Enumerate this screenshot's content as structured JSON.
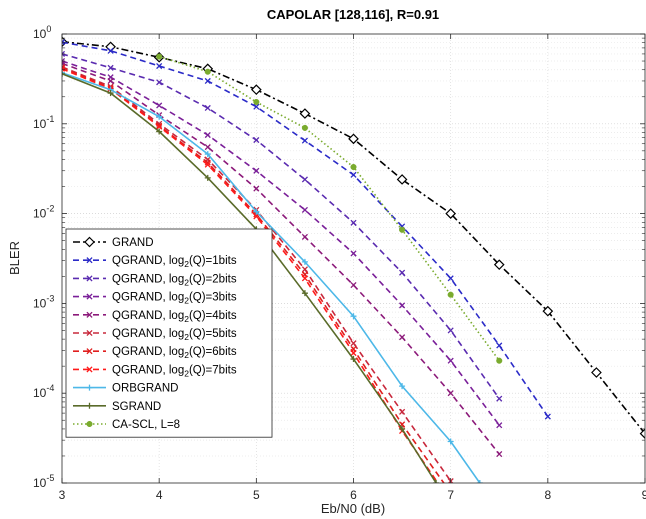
{
  "chart_data": {
    "type": "line",
    "title": "CAPOLAR [128,116], R=0.91",
    "xlabel": "Eb/N0 (dB)",
    "ylabel": "BLER",
    "xlim": [
      3,
      9
    ],
    "ylim": [
      1e-05,
      1
    ],
    "yscale": "log",
    "grid": true,
    "legend_position": "lower-left",
    "x_ticks": [
      "3",
      "4",
      "5",
      "6",
      "7",
      "8",
      "9"
    ],
    "y_ticks": [
      {
        "base": "10",
        "exp": "0",
        "value": 1
      },
      {
        "base": "10",
        "exp": "-1",
        "value": 0.1
      },
      {
        "base": "10",
        "exp": "-2",
        "value": 0.01
      },
      {
        "base": "10",
        "exp": "-3",
        "value": 0.001
      },
      {
        "base": "10",
        "exp": "-4",
        "value": 0.0001
      },
      {
        "base": "10",
        "exp": "-5",
        "value": 1e-05
      }
    ],
    "series": [
      {
        "name": "GRAND",
        "legend": {
          "main": "GRAND"
        },
        "color": "#000000",
        "dash": "7,3,2,3",
        "marker": "diamond",
        "x": [
          3,
          3.5,
          4,
          4.5,
          5,
          5.5,
          6,
          6.5,
          7,
          7.5,
          8,
          8.5,
          9
        ],
        "y": [
          0.82,
          0.72,
          0.55,
          0.41,
          0.24,
          0.13,
          0.068,
          0.024,
          0.01,
          0.0027,
          0.00082,
          0.00017,
          3.55e-05
        ]
      },
      {
        "name": "QGRAND, log2(Q)=1bits",
        "legend": {
          "main": "QGRAND, log",
          "sub": "2",
          "tail": "(Q)=1bits"
        },
        "color": "#2b2bc8",
        "dash": "6,4",
        "marker": "x",
        "x": [
          3,
          3.5,
          4,
          4.5,
          5,
          5.5,
          6,
          6.5,
          7,
          7.5,
          8
        ],
        "y": [
          0.81,
          0.65,
          0.44,
          0.3,
          0.155,
          0.065,
          0.027,
          0.0072,
          0.0019,
          0.00034,
          5.5e-05
        ]
      },
      {
        "name": "QGRAND, log2(Q)=2bits",
        "legend": {
          "main": "QGRAND, log",
          "sub": "2",
          "tail": "(Q)=2bits"
        },
        "color": "#5a2bb0",
        "dash": "6,4",
        "marker": "x",
        "x": [
          3,
          3.5,
          4,
          4.5,
          5,
          5.5,
          6,
          6.5,
          7,
          7.5
        ],
        "y": [
          0.6,
          0.42,
          0.29,
          0.15,
          0.066,
          0.024,
          0.0079,
          0.0022,
          0.0005,
          8.7e-05
        ]
      },
      {
        "name": "QGRAND, log2(Q)=3bits",
        "legend": {
          "main": "QGRAND, log",
          "sub": "2",
          "tail": "(Q)=3bits"
        },
        "color": "#7a1f99",
        "dash": "6,4",
        "marker": "x",
        "x": [
          3,
          3.5,
          4,
          4.5,
          5,
          5.5,
          6,
          6.5,
          7,
          7.5
        ],
        "y": [
          0.5,
          0.33,
          0.16,
          0.075,
          0.03,
          0.011,
          0.0036,
          0.00095,
          0.00023,
          4.4e-05
        ]
      },
      {
        "name": "QGRAND, log2(Q)=4bits",
        "legend": {
          "main": "QGRAND, log",
          "sub": "2",
          "tail": "(Q)=4bits"
        },
        "color": "#8c1a7a",
        "dash": "6,4",
        "marker": "x",
        "x": [
          3,
          3.5,
          4,
          4.5,
          5,
          5.5,
          6,
          6.5,
          7,
          7.5
        ],
        "y": [
          0.47,
          0.3,
          0.125,
          0.055,
          0.019,
          0.0055,
          0.0016,
          0.00042,
          0.0001,
          2.1e-05
        ]
      },
      {
        "name": "QGRAND, log2(Q)=5bits",
        "legend": {
          "main": "QGRAND, log",
          "sub": "2",
          "tail": "(Q)=5bits"
        },
        "color": "#c8283c",
        "dash": "6,4",
        "marker": "x",
        "x": [
          3,
          3.5,
          4,
          4.5,
          5,
          5.5,
          6,
          6.5,
          7
        ],
        "y": [
          0.43,
          0.26,
          0.1,
          0.04,
          0.011,
          0.0024,
          0.00036,
          6.2e-05,
          1.05e-05
        ]
      },
      {
        "name": "QGRAND, log2(Q)=6bits",
        "legend": {
          "main": "QGRAND, log",
          "sub": "2",
          "tail": "(Q)=6bits"
        },
        "color": "#e01e1e",
        "dash": "6,4",
        "marker": "x",
        "x": [
          3,
          3.5,
          4,
          4.5,
          5,
          5.5,
          6,
          6.5,
          7
        ],
        "y": [
          0.42,
          0.25,
          0.095,
          0.037,
          0.0098,
          0.0021,
          0.00031,
          4.5e-05,
          7.8e-06
        ]
      },
      {
        "name": "QGRAND, log2(Q)=7bits",
        "legend": {
          "main": "QGRAND, log",
          "sub": "2",
          "tail": "(Q)=7bits"
        },
        "color": "#ff1a1a",
        "dash": "6,4",
        "marker": "x",
        "x": [
          3,
          3.5,
          4,
          4.5,
          5,
          5.5,
          6,
          6.5,
          7
        ],
        "y": [
          0.41,
          0.245,
          0.093,
          0.035,
          0.0093,
          0.0019,
          0.00028,
          3.8e-05,
          6.2e-06
        ]
      },
      {
        "name": "ORBGRAND",
        "legend": {
          "main": "ORBGRAND"
        },
        "color": "#4db8e8",
        "dash": "",
        "marker": "plus",
        "x": [
          3,
          3.5,
          4,
          4.5,
          5,
          5.5,
          6,
          6.5,
          7,
          7.3
        ],
        "y": [
          0.37,
          0.24,
          0.12,
          0.046,
          0.0105,
          0.0029,
          0.00072,
          0.00012,
          2.9e-05,
          1e-05
        ]
      },
      {
        "name": "SGRAND",
        "legend": {
          "main": "SGRAND"
        },
        "color": "#5a6b2a",
        "dash": "",
        "marker": "plus",
        "x": [
          3,
          3.5,
          4,
          4.5,
          5,
          5.5,
          6,
          6.5,
          6.85
        ],
        "y": [
          0.36,
          0.22,
          0.082,
          0.025,
          0.0067,
          0.0013,
          0.00024,
          4e-05,
          1e-05
        ]
      },
      {
        "name": "CA-SCL, L=8",
        "legend": {
          "main": "CA-SCL, L=8"
        },
        "color": "#7aab2e",
        "dash": "1.5,2.5",
        "marker": "dot",
        "x": [
          4,
          4.5,
          5,
          5.5,
          6,
          6.5,
          7,
          7.5
        ],
        "y": [
          0.56,
          0.38,
          0.175,
          0.09,
          0.033,
          0.0066,
          0.00125,
          0.00023
        ]
      }
    ]
  }
}
